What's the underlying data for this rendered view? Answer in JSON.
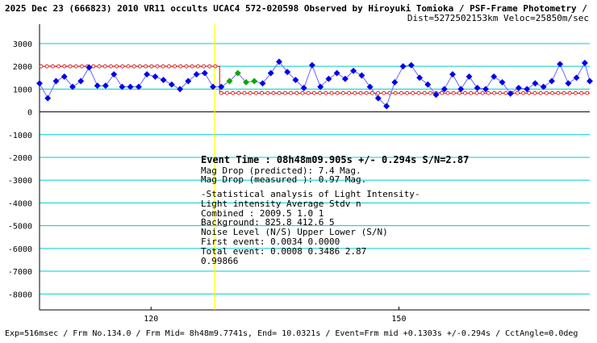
{
  "header": {
    "line1_bold": "2025 Dec 23 (666823) 2010 VR11 occults UCAC4 572-020598 Observed by Hiroyuki Tomioka",
    "line1_rest": " / PSF-Frame Photometry /",
    "line2": "Dist=5272502153km Veloc=25850m/sec"
  },
  "annotation": {
    "event_time": "Event Time : 08h48m09.905s  +/- 0.294s  S/N=2.87",
    "mag_drop_pred": "Mag Drop (predicted):  7.4   Mag.",
    "mag_drop_meas": "Mag Drop (measured ):  0.97  Mag.",
    "stat_title": "-Statistical analysis of Light Intensity-",
    "stat_header": "Light intensity   Average   Stdv     n",
    "combined": "  Combined  :      2009.5     1.0     1",
    "background": "  Background:      825.8    412.6    5",
    "noise_header": "Noise Level (N/S)  Upper    Lower   (S/N)",
    "first_event": "  First event:     0.0034   0.0000",
    "total_event": "  Total event:     0.0008   0.3486   2.87",
    "extra_value": "0.99866"
  },
  "footer": {
    "text": "Exp=516msec / Frm No.134.0 / Frm Mid= 8h48m9.7741s, End= 10.0321s / Event=Frm mid +0.1303s +/-0.294s / CctAngle=0.0deg"
  },
  "chart_data": {
    "type": "line",
    "ylim": [
      -8700,
      3850
    ],
    "xlim": [
      106.5,
      173.1
    ],
    "y_ticks": [
      3000,
      2000,
      1000,
      0,
      -1000,
      -2000,
      -3000,
      -4000,
      -5000,
      -6000,
      -7000,
      -8000
    ],
    "y_tick_labels": [
      "3000",
      "2000",
      "1000",
      "0",
      "-1000",
      "-2000",
      "-3000",
      "-4000",
      "-5000",
      "-6000",
      "-7000",
      "-8000"
    ],
    "x_ticks": [
      120,
      150
    ],
    "x_tick_labels": [
      "120",
      "150"
    ],
    "event_x": 127.7,
    "predicted_before_level": 2000,
    "predicted_after_level": 825,
    "prediction_step_x": 128.3,
    "colors": {
      "series": "#0000ee",
      "line": "#6666ff",
      "prediction": "#dd0000",
      "event_line": "#ffff00",
      "grid": "#00cccc",
      "highlight": "#00aa00",
      "axis": "#000000"
    },
    "series": [
      {
        "values": [
          [
            106.5,
            1250
          ],
          [
            107.5,
            600
          ],
          [
            108.5,
            1350
          ],
          [
            109.5,
            1550
          ],
          [
            110.5,
            1100
          ],
          [
            111.5,
            1350
          ],
          [
            112.5,
            1950
          ],
          [
            113.5,
            1150
          ],
          [
            114.5,
            1150
          ],
          [
            115.5,
            1650
          ],
          [
            116.5,
            1100
          ],
          [
            117.5,
            1100
          ],
          [
            118.5,
            1100
          ],
          [
            119.5,
            1650
          ],
          [
            120.5,
            1550
          ],
          [
            121.5,
            1400
          ],
          [
            122.5,
            1200
          ],
          [
            123.5,
            1000
          ],
          [
            124.5,
            1350
          ],
          [
            125.5,
            1650
          ],
          [
            126.5,
            1700
          ],
          [
            127.5,
            1100
          ],
          [
            128.5,
            1100
          ],
          [
            129.5,
            1350
          ],
          [
            130.5,
            1700
          ],
          [
            131.5,
            1300
          ],
          [
            132.5,
            1350
          ],
          [
            133.5,
            1250
          ],
          [
            134.5,
            1700
          ],
          [
            135.5,
            2200
          ],
          [
            136.5,
            1750
          ],
          [
            137.5,
            1400
          ],
          [
            138.5,
            1050
          ],
          [
            139.5,
            2050
          ],
          [
            140.5,
            1100
          ],
          [
            141.5,
            1450
          ],
          [
            142.5,
            1700
          ],
          [
            143.5,
            1450
          ],
          [
            144.5,
            1800
          ],
          [
            145.5,
            1600
          ],
          [
            146.5,
            1100
          ],
          [
            147.5,
            600
          ],
          [
            148.5,
            250
          ],
          [
            149.5,
            1300
          ],
          [
            150.5,
            2000
          ],
          [
            151.5,
            2050
          ],
          [
            152.5,
            1500
          ],
          [
            153.5,
            1200
          ],
          [
            154.5,
            750
          ],
          [
            155.5,
            1000
          ],
          [
            156.5,
            1650
          ],
          [
            157.5,
            1000
          ],
          [
            158.5,
            1550
          ],
          [
            159.5,
            1050
          ],
          [
            160.5,
            1000
          ],
          [
            161.5,
            1550
          ],
          [
            162.5,
            1300
          ],
          [
            163.5,
            800
          ],
          [
            164.5,
            1050
          ],
          [
            165.5,
            1000
          ],
          [
            166.5,
            1250
          ],
          [
            167.5,
            1100
          ],
          [
            168.5,
            1350
          ],
          [
            169.5,
            2100
          ],
          [
            170.5,
            1250
          ],
          [
            171.5,
            1500
          ],
          [
            172.5,
            2150
          ],
          [
            173.1,
            1350
          ]
        ]
      }
    ]
  }
}
